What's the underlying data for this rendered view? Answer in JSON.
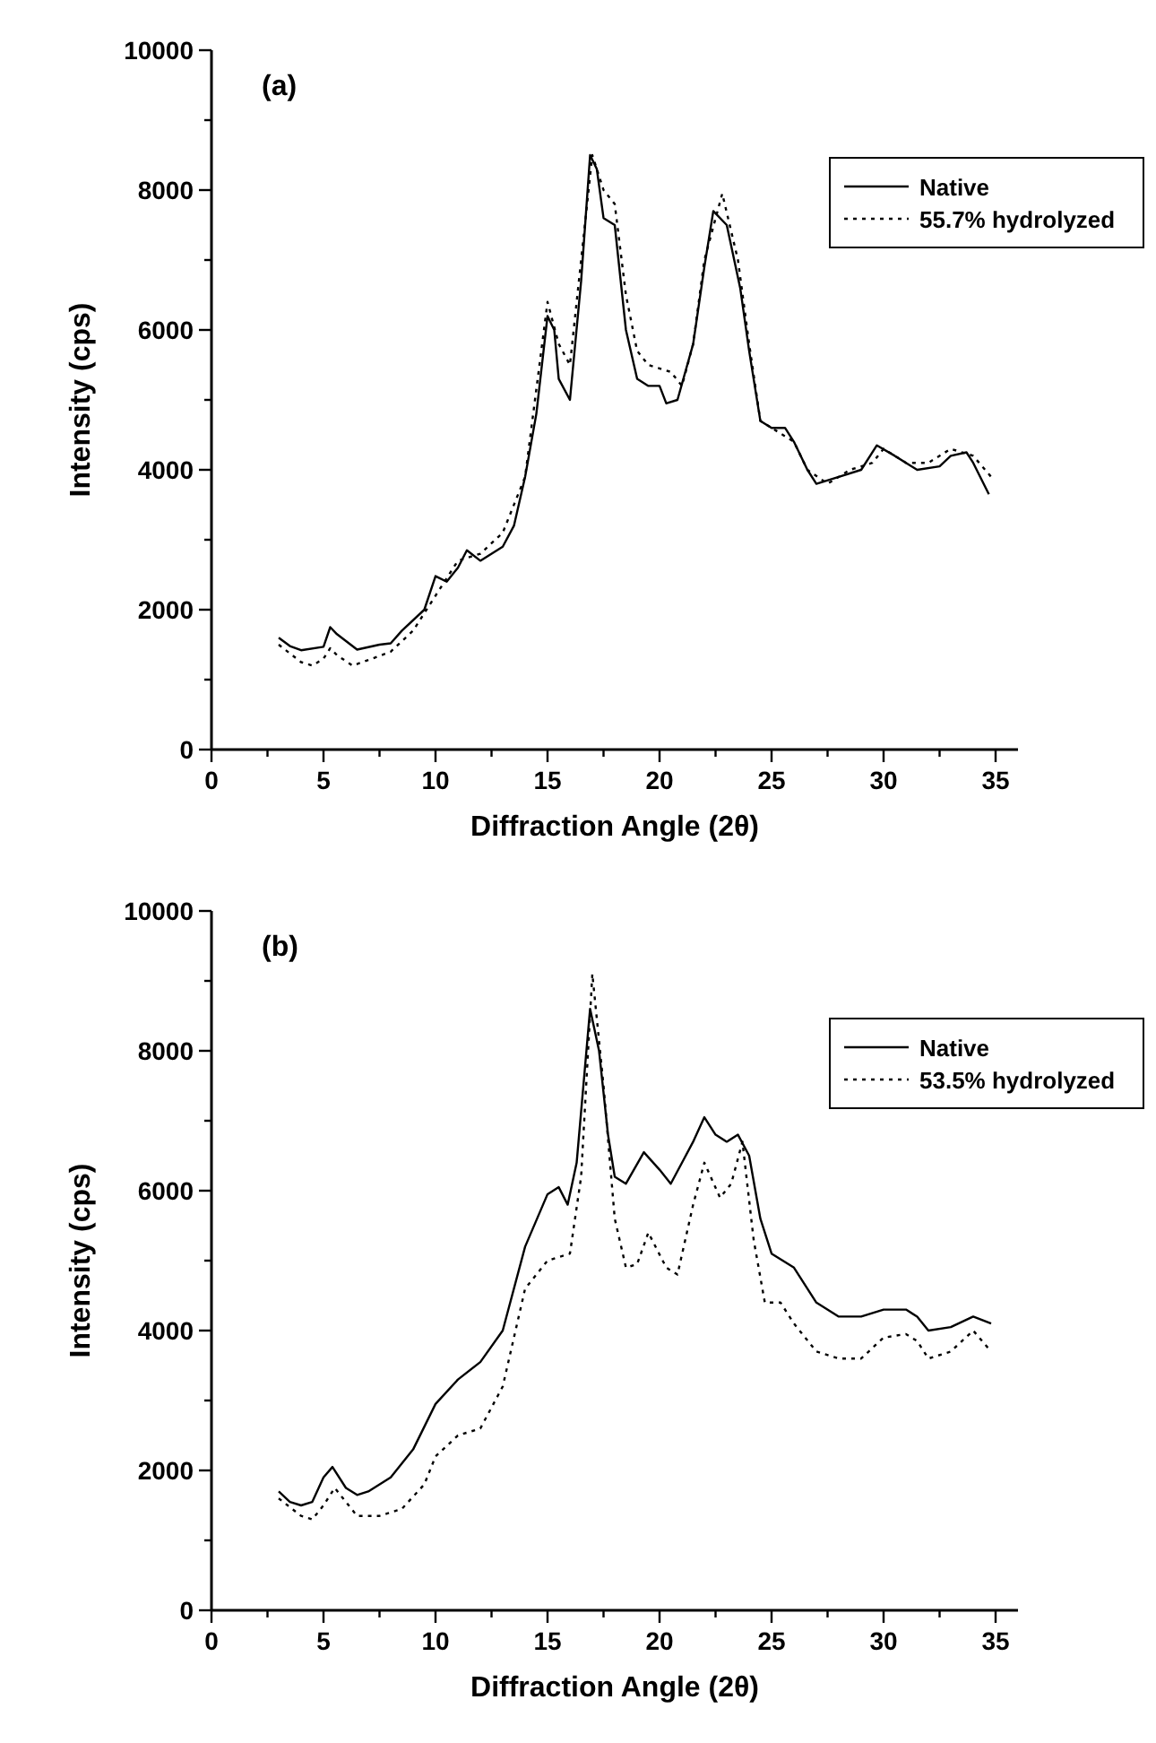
{
  "chart_data": [
    {
      "type": "line",
      "xlabel": "Diffraction Angle (2θ)",
      "ylabel": "Intensity (cps)",
      "annotations": [
        "(a)"
      ],
      "xlim": [
        0,
        36
      ],
      "ylim": [
        0,
        10000
      ],
      "xticks": [
        0,
        {
          "value": 2.5,
          "label": null
        },
        5,
        {
          "value": 7.5,
          "label": null
        },
        10,
        {
          "value": 12.5,
          "label": null
        },
        15,
        {
          "value": 17.5,
          "label": null
        },
        20,
        {
          "value": 22.5,
          "label": null
        },
        25,
        {
          "value": 27.5,
          "label": null
        },
        30,
        {
          "value": 32.5,
          "label": null
        },
        35
      ],
      "yticks": [
        0,
        {
          "value": 1000,
          "label": null
        },
        2000,
        {
          "value": 3000,
          "label": null
        },
        4000,
        {
          "value": 5000,
          "label": null
        },
        6000,
        {
          "value": 7000,
          "label": null
        },
        8000,
        {
          "value": 9000,
          "label": null
        },
        10000
      ],
      "legend": "top right",
      "grid": false,
      "series": [
        {
          "name": "Native",
          "color": "#000000",
          "line_style": "solid",
          "x": [
            3,
            3.5,
            4,
            5,
            5.3,
            5.6,
            6.5,
            7.5,
            8,
            8.5,
            9.5,
            10,
            10.5,
            11,
            11.4,
            12,
            13,
            13.5,
            14,
            14.5,
            15,
            15.3,
            15.5,
            16,
            16.5,
            16.9,
            17.2,
            17.5,
            18,
            18.5,
            19,
            19.5,
            20,
            20.3,
            20.8,
            21.5,
            22,
            22.4,
            23,
            23.6,
            24,
            24.5,
            25,
            25.6,
            26,
            26.6,
            27,
            28,
            29,
            29.7,
            30.5,
            31.5,
            32.5,
            33,
            33.7,
            34,
            34.7
          ],
          "values": [
            1600,
            1480,
            1420,
            1470,
            1750,
            1650,
            1430,
            1500,
            1520,
            1700,
            2000,
            2480,
            2400,
            2600,
            2850,
            2700,
            2900,
            3200,
            3900,
            4800,
            6200,
            6000,
            5300,
            5000,
            6700,
            8500,
            8300,
            7600,
            7500,
            6000,
            5300,
            5200,
            5200,
            4950,
            5000,
            5800,
            6900,
            7700,
            7500,
            6600,
            5700,
            4700,
            4600,
            4600,
            4400,
            4000,
            3800,
            3900,
            4000,
            4350,
            4200,
            4000,
            4050,
            4200,
            4250,
            4100,
            3650
          ]
        },
        {
          "name": "55.7% hydrolyzed",
          "color": "#000000",
          "line_style": "dotted",
          "x": [
            3,
            4,
            4.5,
            5,
            5.3,
            5.6,
            6.3,
            7,
            8,
            9,
            10,
            11,
            12,
            13,
            14,
            15,
            15.5,
            16,
            16.5,
            17,
            17.5,
            18,
            18.5,
            19,
            19.5,
            20.5,
            21,
            21.5,
            22,
            22.8,
            23.5,
            24,
            24.5,
            25,
            26,
            26.6,
            27.5,
            28.5,
            29.5,
            30,
            31,
            32,
            33,
            34,
            34.8
          ],
          "values": [
            1500,
            1250,
            1200,
            1300,
            1450,
            1350,
            1200,
            1280,
            1400,
            1700,
            2200,
            2700,
            2800,
            3100,
            3900,
            6400,
            5800,
            5500,
            7000,
            8500,
            8000,
            7800,
            6500,
            5700,
            5500,
            5400,
            5200,
            5800,
            7000,
            7950,
            7000,
            5800,
            4700,
            4600,
            4400,
            4000,
            3800,
            4000,
            4100,
            4300,
            4100,
            4100,
            4300,
            4200,
            3900
          ]
        }
      ]
    },
    {
      "type": "line",
      "xlabel": "Diffraction Angle (2θ)",
      "ylabel": "Intensity (cps)",
      "annotations": [
        "(b)"
      ],
      "xlim": [
        0,
        36
      ],
      "ylim": [
        0,
        10000
      ],
      "xticks": [
        0,
        {
          "value": 2.5,
          "label": null
        },
        5,
        {
          "value": 7.5,
          "label": null
        },
        10,
        {
          "value": 12.5,
          "label": null
        },
        15,
        {
          "value": 17.5,
          "label": null
        },
        20,
        {
          "value": 22.5,
          "label": null
        },
        25,
        {
          "value": 27.5,
          "label": null
        },
        30,
        {
          "value": 32.5,
          "label": null
        },
        35
      ],
      "yticks": [
        0,
        {
          "value": 1000,
          "label": null
        },
        2000,
        {
          "value": 3000,
          "label": null
        },
        4000,
        {
          "value": 5000,
          "label": null
        },
        6000,
        {
          "value": 7000,
          "label": null
        },
        8000,
        {
          "value": 9000,
          "label": null
        },
        10000
      ],
      "legend": "top right",
      "grid": false,
      "series": [
        {
          "name": "Native",
          "color": "#000000",
          "line_style": "solid",
          "x": [
            3,
            3.5,
            4,
            4.5,
            5,
            5.4,
            6,
            6.5,
            7,
            8,
            9,
            10,
            11,
            12,
            13,
            14,
            15,
            15.5,
            15.9,
            16.3,
            16.9,
            17.3,
            17.7,
            18,
            18.5,
            19.3,
            20,
            20.5,
            21.5,
            22,
            22.5,
            23,
            23.5,
            24,
            24.5,
            25,
            26,
            27,
            28,
            29,
            30,
            31,
            31.5,
            32,
            33,
            34,
            34.8
          ],
          "values": [
            1700,
            1550,
            1500,
            1550,
            1900,
            2050,
            1750,
            1650,
            1700,
            1900,
            2300,
            2950,
            3300,
            3550,
            4000,
            5200,
            5950,
            6050,
            5800,
            6400,
            8600,
            8000,
            6800,
            6200,
            6100,
            6550,
            6300,
            6100,
            6700,
            7050,
            6800,
            6700,
            6800,
            6500,
            5600,
            5100,
            4900,
            4400,
            4200,
            4200,
            4300,
            4300,
            4200,
            4000,
            4050,
            4200,
            4100
          ]
        },
        {
          "name": "53.5% hydrolyzed",
          "color": "#000000",
          "line_style": "dotted",
          "x": [
            3,
            4,
            4.5,
            5,
            5.5,
            6.5,
            7.5,
            8.5,
            9.5,
            10,
            11,
            12,
            13,
            14,
            15,
            16,
            16.5,
            17,
            17.5,
            18,
            18.5,
            19,
            19.5,
            20.3,
            20.8,
            21.5,
            22,
            22.7,
            23.2,
            23.7,
            24.2,
            24.7,
            25.4,
            26,
            27,
            28,
            29,
            30,
            31,
            31.5,
            32,
            33,
            34,
            34.8
          ],
          "values": [
            1600,
            1350,
            1300,
            1500,
            1750,
            1350,
            1350,
            1450,
            1800,
            2200,
            2500,
            2600,
            3200,
            4600,
            5000,
            5100,
            6200,
            9100,
            7500,
            5600,
            4900,
            4950,
            5400,
            4900,
            4800,
            5800,
            6400,
            5900,
            6100,
            6700,
            5300,
            4400,
            4400,
            4100,
            3700,
            3600,
            3600,
            3900,
            3950,
            3850,
            3600,
            3700,
            4000,
            3700
          ]
        }
      ]
    }
  ]
}
